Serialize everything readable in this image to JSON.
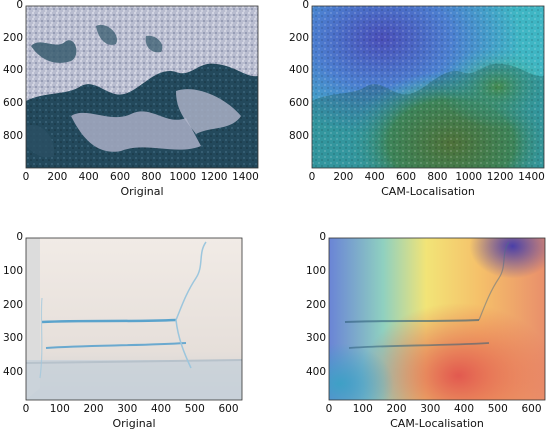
{
  "figure": {
    "panels": [
      {
        "id": "top-left",
        "kind": "original",
        "xlabel": "Original",
        "xticks": [
          "0",
          "200",
          "400",
          "600",
          "800",
          "1000",
          "1200",
          "1400"
        ],
        "yticks": [
          "0",
          "200",
          "400",
          "600",
          "800"
        ]
      },
      {
        "id": "top-right",
        "kind": "cam",
        "xlabel": "CAM-Localisation",
        "xticks": [
          "0",
          "200",
          "400",
          "600",
          "800",
          "1000",
          "1200",
          "1400"
        ],
        "yticks": [
          "0",
          "200",
          "400",
          "600",
          "800"
        ]
      },
      {
        "id": "bottom-left",
        "kind": "original",
        "xlabel": "Original",
        "xticks": [
          "0",
          "100",
          "200",
          "300",
          "400",
          "500",
          "600"
        ],
        "yticks": [
          "0",
          "100",
          "200",
          "300",
          "400"
        ]
      },
      {
        "id": "bottom-right",
        "kind": "cam",
        "xlabel": "CAM-Localisation",
        "xticks": [
          "0",
          "100",
          "200",
          "300",
          "400",
          "500",
          "600"
        ],
        "yticks": [
          "0",
          "100",
          "200",
          "300",
          "400"
        ]
      }
    ]
  }
}
